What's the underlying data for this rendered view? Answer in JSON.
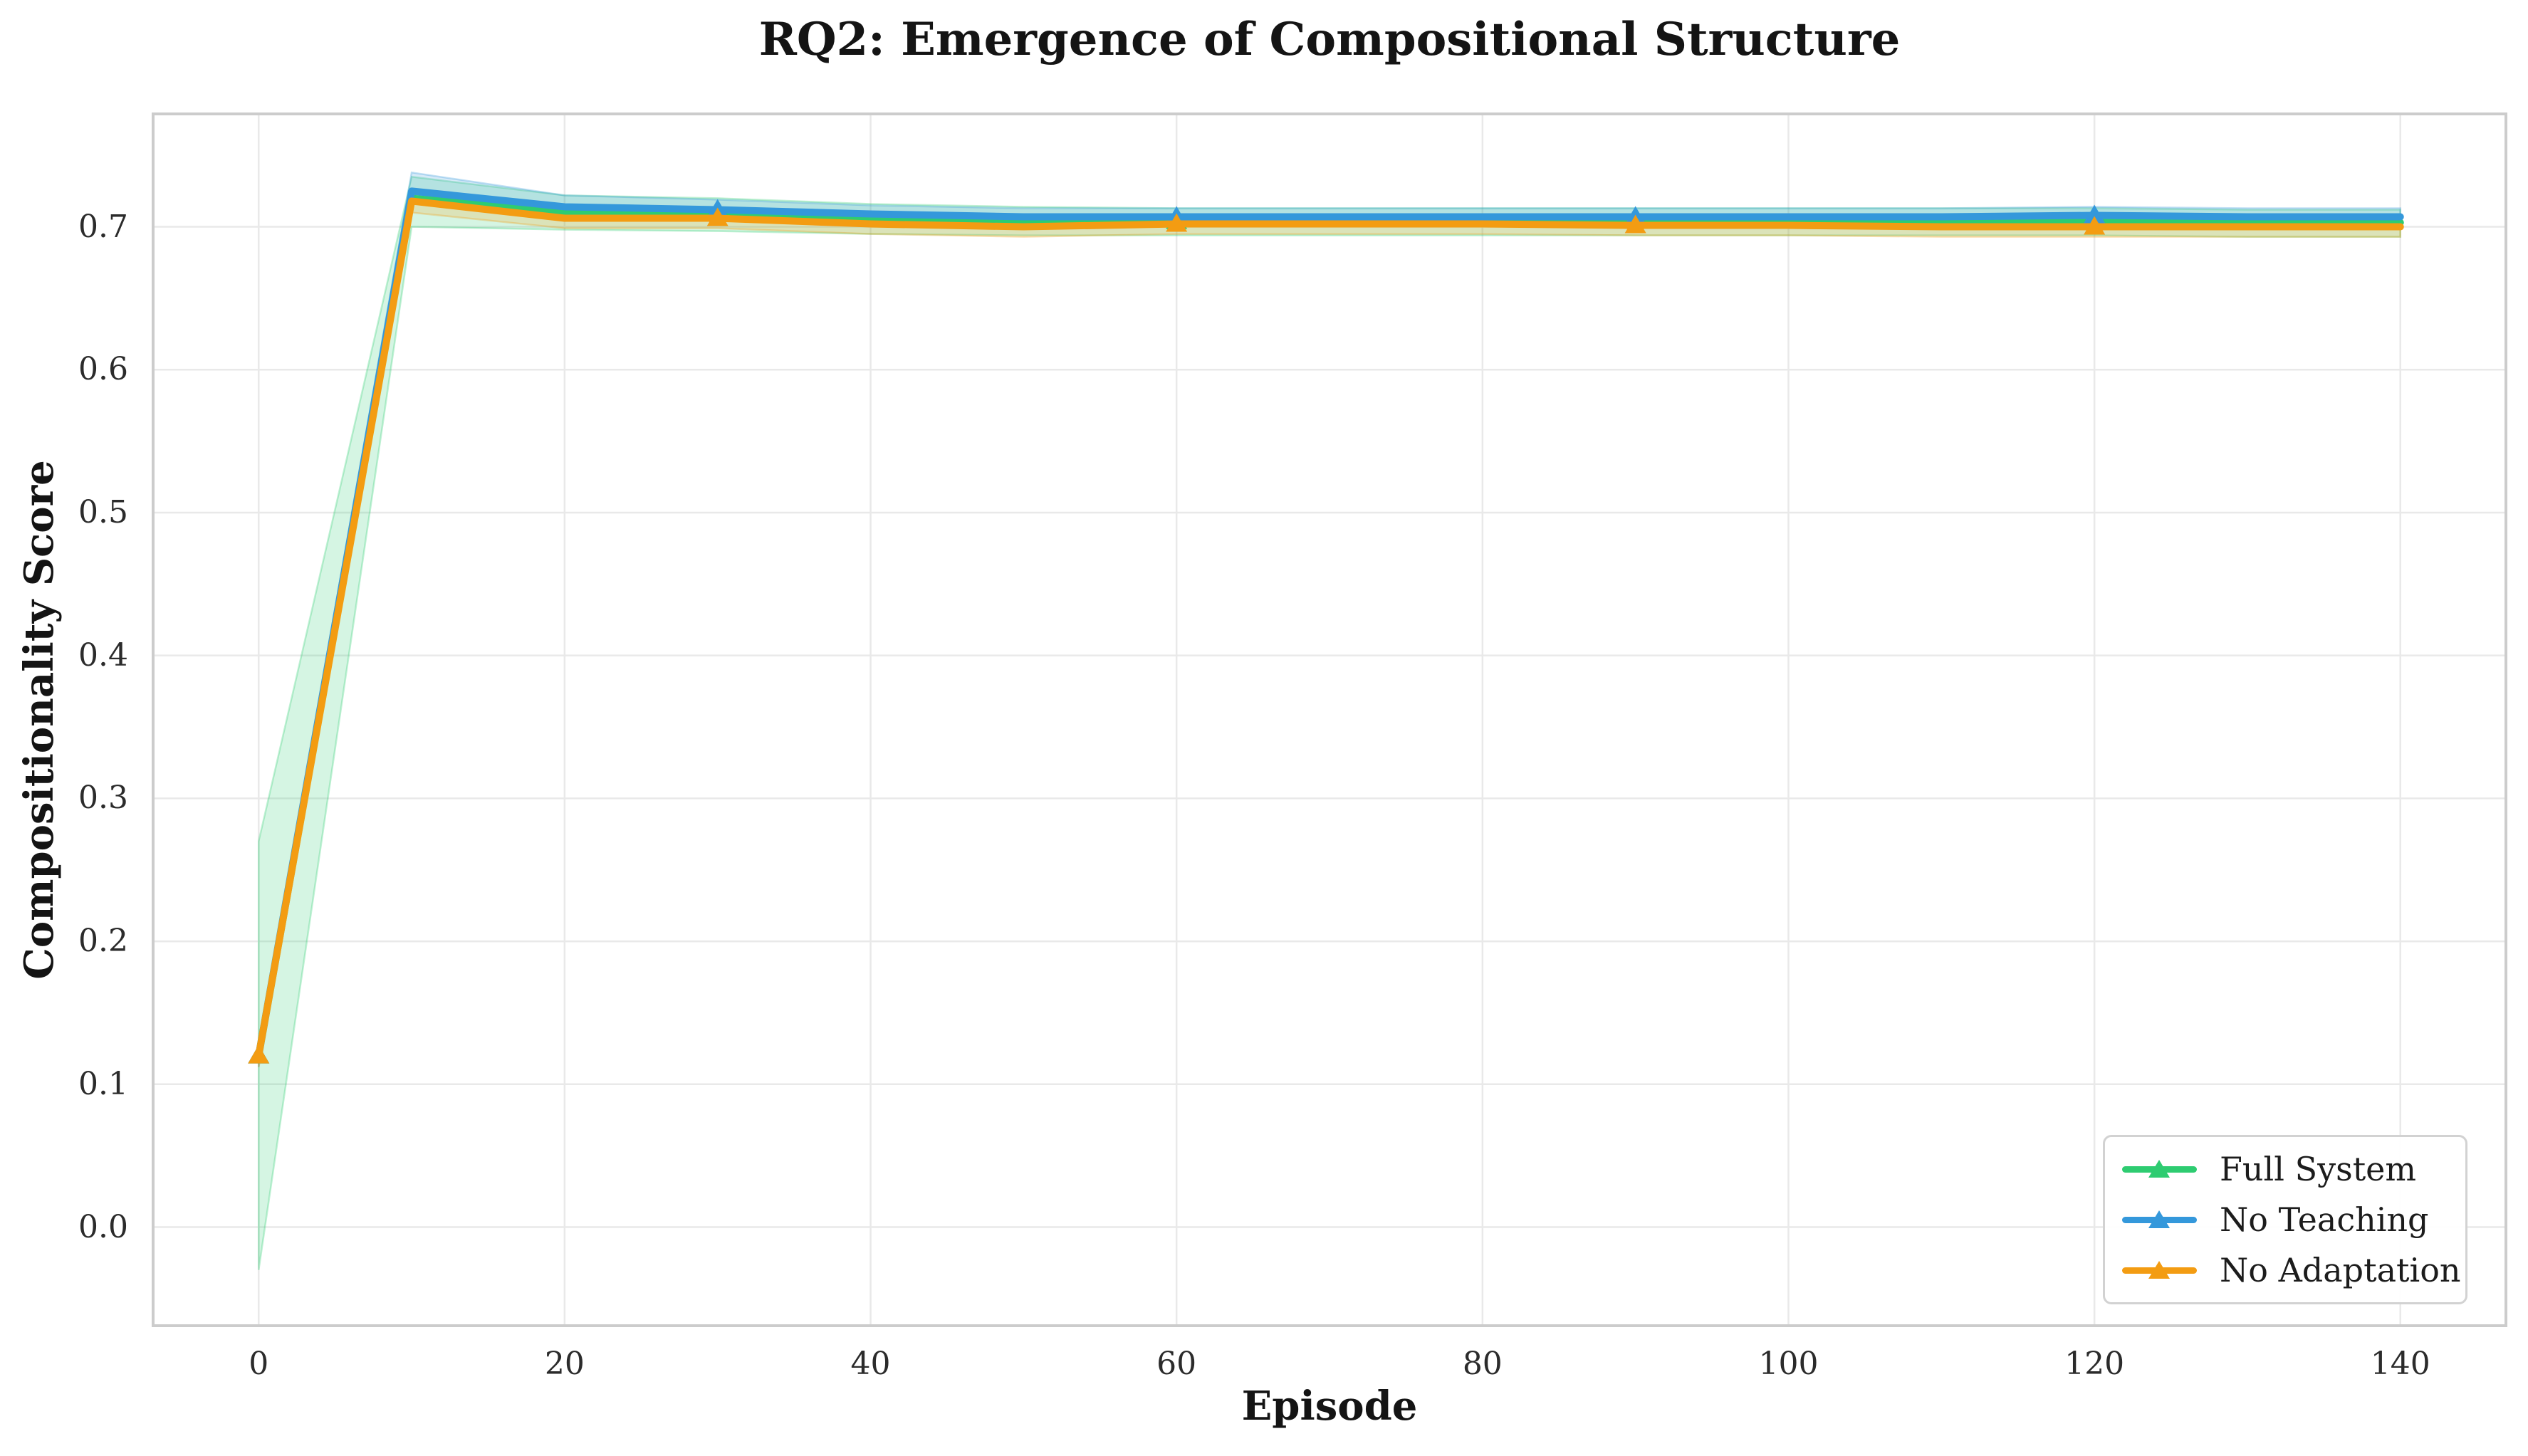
{
  "chart_data": {
    "type": "line",
    "title": "RQ2: Emergence of Compositional Structure",
    "xlabel": "Episode",
    "ylabel": "Compositionality Score",
    "x": [
      0,
      10,
      20,
      30,
      40,
      50,
      60,
      70,
      80,
      90,
      100,
      110,
      120,
      130,
      140
    ],
    "xlim": [
      -6.9,
      146.9
    ],
    "ylim": [
      -0.069,
      0.779
    ],
    "xticks": {
      "values": [
        0,
        20,
        40,
        60,
        80,
        100,
        120,
        140
      ],
      "labels": [
        "0",
        "20",
        "40",
        "60",
        "80",
        "100",
        "120",
        "140"
      ]
    },
    "yticks": {
      "values": [
        0.0,
        0.1,
        0.2,
        0.3,
        0.4,
        0.5,
        0.6,
        0.7
      ],
      "labels": [
        "0.0",
        "0.1",
        "0.2",
        "0.3",
        "0.4",
        "0.5",
        "0.6",
        "0.7"
      ]
    },
    "grid": true,
    "legend_position": "lower right",
    "marker": "triangle-up",
    "marker_episodes": [
      0,
      30,
      60,
      90,
      120
    ],
    "band_alpha": 0.2,
    "series": [
      {
        "name": "Full System",
        "color": "#2ecc71",
        "values": [
          0.12,
          0.72,
          0.71,
          0.709,
          0.706,
          0.704,
          0.704,
          0.704,
          0.704,
          0.704,
          0.704,
          0.704,
          0.704,
          0.703,
          0.703
        ],
        "band_lo": [
          -0.03,
          0.7,
          0.698,
          0.697,
          0.695,
          0.694,
          0.694,
          0.694,
          0.694,
          0.694,
          0.694,
          0.694,
          0.694,
          0.693,
          0.693
        ],
        "band_hi": [
          0.27,
          0.735,
          0.722,
          0.72,
          0.716,
          0.714,
          0.713,
          0.713,
          0.713,
          0.713,
          0.713,
          0.713,
          0.713,
          0.712,
          0.712
        ]
      },
      {
        "name": "No Teaching",
        "color": "#3498db",
        "values": [
          0.12,
          0.725,
          0.714,
          0.712,
          0.709,
          0.707,
          0.707,
          0.707,
          0.707,
          0.707,
          0.707,
          0.707,
          0.708,
          0.707,
          0.707
        ],
        "band_lo": [
          0.112,
          0.718,
          0.708,
          0.706,
          0.703,
          0.701,
          0.701,
          0.701,
          0.701,
          0.701,
          0.701,
          0.701,
          0.702,
          0.701,
          0.701
        ],
        "band_hi": [
          0.128,
          0.738,
          0.722,
          0.719,
          0.715,
          0.713,
          0.713,
          0.713,
          0.713,
          0.713,
          0.713,
          0.713,
          0.714,
          0.713,
          0.713
        ]
      },
      {
        "name": "No Adaptation",
        "color": "#f39c12",
        "values": [
          0.12,
          0.718,
          0.706,
          0.706,
          0.702,
          0.7,
          0.702,
          0.702,
          0.702,
          0.701,
          0.701,
          0.7,
          0.7,
          0.7,
          0.7
        ],
        "band_lo": [
          0.112,
          0.71,
          0.699,
          0.699,
          0.695,
          0.693,
          0.695,
          0.695,
          0.695,
          0.694,
          0.694,
          0.693,
          0.693,
          0.693,
          0.693
        ],
        "band_hi": [
          0.128,
          0.724,
          0.712,
          0.712,
          0.708,
          0.706,
          0.708,
          0.708,
          0.708,
          0.707,
          0.707,
          0.706,
          0.706,
          0.706,
          0.706
        ]
      }
    ],
    "colors": {
      "background": "#ffffff",
      "grid": "#e9e9e9",
      "spine": "#cccccc",
      "tick_text": "#2b2b2b",
      "title_text": "#141414"
    }
  }
}
